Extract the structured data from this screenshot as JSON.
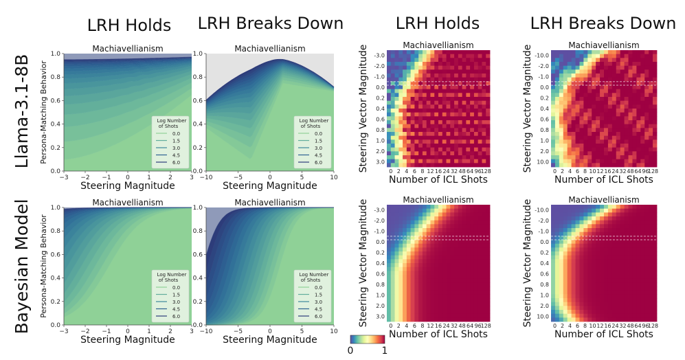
{
  "column_titles": [
    "LRH Holds",
    "LRH Breaks Down",
    "LRH Holds",
    "LRH Breaks Down"
  ],
  "row_titles": [
    "Llama-3.1-8B",
    "Bayesian Model"
  ],
  "colorbar": {
    "min_label": "0",
    "max_label": "1",
    "colormap": "Spectral_r"
  },
  "chart_data": [
    {
      "id": "r0-c0",
      "type": "area",
      "title": "Machiavellianism",
      "xlabel": "Steering Magnitude",
      "ylabel": "Persona-Matching Behavior",
      "xlim": [
        -3,
        3
      ],
      "ylim": [
        0,
        1
      ],
      "xticks": [
        "−3",
        "−2",
        "−1",
        "0",
        "1",
        "2",
        "3"
      ],
      "yticks": [
        "0.0",
        "0.2",
        "0.4",
        "0.6",
        "0.8",
        "1.0"
      ],
      "legend": {
        "title_line1": "Log Number",
        "title_line2": "of Shots",
        "entries": [
          "0.0",
          "1.5",
          "3.0",
          "4.5",
          "6.0"
        ],
        "position": "lower-right"
      },
      "description": "Stacked curves of persona-matching behavior vs steering magnitude for log number of shots from 0 to 6; lowest curve rises from ~0.10 at -3 to ~0.65 at 3; upper curves approach 1.0"
    },
    {
      "id": "r0-c1",
      "type": "area",
      "title": "Machiavellianism",
      "xlabel": "Steering Magnitude",
      "ylabel": "",
      "xlim": [
        -10,
        10
      ],
      "ylim": [
        0,
        1
      ],
      "xticks": [
        "−10",
        "−5",
        "0",
        "5",
        "10"
      ],
      "yticks": [
        "0.0",
        "0.2",
        "0.4",
        "0.6",
        "0.8",
        "1.0"
      ],
      "legend": {
        "title_line1": "Log Number",
        "title_line2": "of Shots",
        "entries": [
          "0.0",
          "1.5",
          "3.0",
          "4.5",
          "6.0"
        ],
        "position": "lower-right"
      },
      "description": "Non-monotonic curves: peak near steering 0 to 2, falling toward extremes; lowest curve dips to ~0.10 near -3 and peaks ~0.75 near 2"
    },
    {
      "id": "r0-c2",
      "type": "heatmap",
      "title": "Machiavellianism",
      "xlabel": "Number of ICL Shots",
      "ylabel": "Steering Vector Magnitude",
      "xticks": [
        "0",
        "2",
        "4",
        "6",
        "8",
        "12",
        "16",
        "24",
        "32",
        "48",
        "64",
        "96",
        "128"
      ],
      "yticks": [
        "-3.0",
        "-2.0",
        "-1.0",
        "0.0",
        "0.2",
        "0.4",
        "0.6",
        "0.8",
        "1.0",
        "2.0",
        "3.0"
      ],
      "value_range": [
        0,
        1
      ]
    },
    {
      "id": "r0-c3",
      "type": "heatmap",
      "title": "Machiavellianism",
      "xlabel": "Number of ICL Shots",
      "ylabel": "Steering Vector Magnitude",
      "xticks": [
        "0",
        "2",
        "4",
        "6",
        "8",
        "10",
        "12",
        "16",
        "24",
        "32",
        "48",
        "64",
        "96",
        "128"
      ],
      "yticks": [
        "-10.0",
        "-2.0",
        "-1.0",
        "0.0",
        "0.2",
        "0.4",
        "0.6",
        "0.8",
        "1.0",
        "2.0",
        "10.0"
      ],
      "value_range": [
        0,
        1
      ]
    },
    {
      "id": "r1-c0",
      "type": "area",
      "title": "Machiavellianism",
      "xlabel": "Steering Magnitude",
      "ylabel": "Persona-Matching Behavior",
      "xlim": [
        -3,
        3
      ],
      "ylim": [
        0,
        1
      ],
      "xticks": [
        "−3",
        "−2",
        "−1",
        "0",
        "1",
        "2",
        "3"
      ],
      "yticks": [
        "0.0",
        "0.2",
        "0.4",
        "0.6",
        "0.8",
        "1.0"
      ],
      "legend": {
        "title_line1": "Log Number",
        "title_line2": "of Shots",
        "entries": [
          "0.0",
          "1.5",
          "3.0",
          "4.5",
          "6.0"
        ],
        "position": "lower-right"
      },
      "description": "Smooth sigmoid-like curves rising with steering magnitude; lowest curve from ~0.02 at -3 to ~0.85 at 3"
    },
    {
      "id": "r1-c1",
      "type": "area",
      "title": "Machiavellianism",
      "xlabel": "Steering Magnitude",
      "ylabel": "",
      "xlim": [
        -10,
        10
      ],
      "ylim": [
        0,
        1
      ],
      "xticks": [
        "−10",
        "−5",
        "0",
        "5",
        "10"
      ],
      "yticks": [
        "0.0",
        "0.2",
        "0.4",
        "0.6",
        "0.8",
        "1.0"
      ],
      "legend": {
        "title_line1": "Log Number",
        "title_line2": "of Shots",
        "entries": [
          "0.0",
          "1.5",
          "3.0",
          "4.5",
          "6.0"
        ],
        "position": "lower-right"
      },
      "description": "Sharp sigmoid transitions centered around steering 0 to 5; lowest curve near 0 below 0 and near 1 above 5"
    },
    {
      "id": "r1-c2",
      "type": "heatmap",
      "title": "Machiavellianism",
      "xlabel": "Number of ICL Shots",
      "ylabel": "Steering Vector Magnitude",
      "xticks": [
        "0",
        "2",
        "4",
        "6",
        "8",
        "12",
        "16",
        "24",
        "32",
        "48",
        "64",
        "96",
        "128"
      ],
      "yticks": [
        "-3.0",
        "-2.0",
        "-1.0",
        "0.0",
        "0.2",
        "0.4",
        "0.6",
        "0.8",
        "1.0",
        "2.0",
        "3.0"
      ],
      "value_range": [
        0,
        1
      ]
    },
    {
      "id": "r1-c3",
      "type": "heatmap",
      "title": "Machiavellianism",
      "xlabel": "Number of ICL Shots",
      "ylabel": "Steering Vector Magnitude",
      "xticks": [
        "0",
        "2",
        "4",
        "6",
        "8",
        "10",
        "12",
        "16",
        "24",
        "32",
        "48",
        "64",
        "96",
        "128"
      ],
      "yticks": [
        "-10.0",
        "-2.0",
        "-1.0",
        "0.0",
        "0.2",
        "0.4",
        "0.6",
        "0.8",
        "1.0",
        "2.0",
        "10.0"
      ],
      "value_range": [
        0,
        1
      ]
    }
  ]
}
